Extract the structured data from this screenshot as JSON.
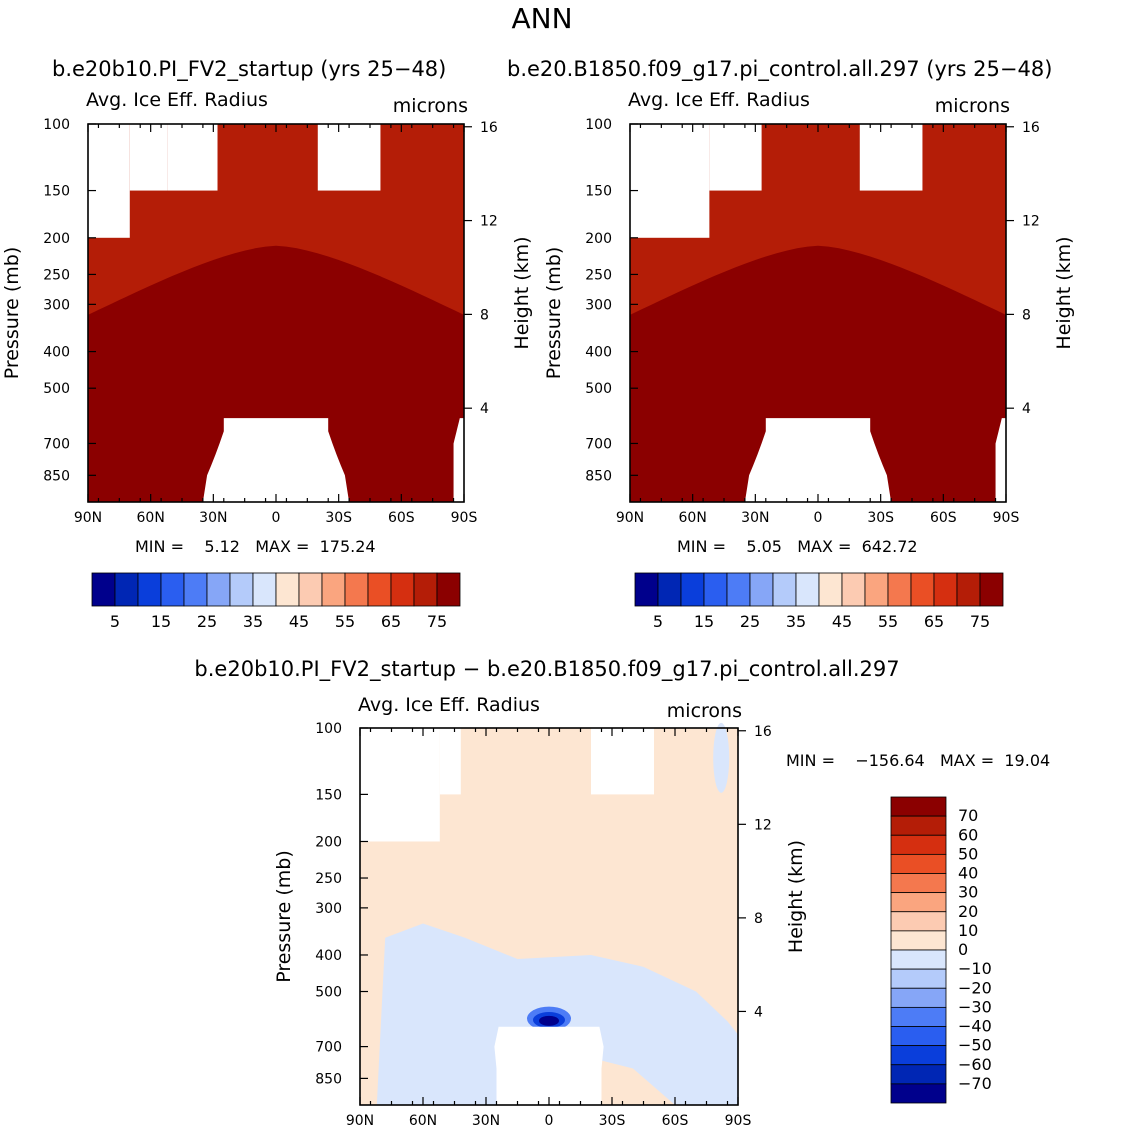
{
  "figure_title": "ANN",
  "case_left": "b.e20b10.PI_FV2_startup (yrs 25−48)",
  "case_right": "b.e20.B1850.f09_g17.pi_control.all.297 (yrs 25−48)",
  "diff_title": "b.e20b10.PI_FV2_startup − b.e20.B1850.f09_g17.pi_control.all.297",
  "colors": {
    "abs_levels": [
      "#00008c",
      "#0026b4",
      "#0a3edb",
      "#2a5ef0",
      "#4d7cf6",
      "#86a6f7",
      "#b4cbfa",
      "#d9e6fc",
      "#fde6d2",
      "#fccbb2",
      "#faa57f",
      "#f4784e",
      "#ea4f25",
      "#d52f10",
      "#b41d07",
      "#8b0000"
    ],
    "diff_levels": [
      "#00008c",
      "#0026b4",
      "#0a3edb",
      "#2a5ef0",
      "#4d7cf6",
      "#86a6f7",
      "#b4cbfa",
      "#d9e6fc",
      "#fde6d2",
      "#fccbb2",
      "#faa57f",
      "#f4784e",
      "#ea4f25",
      "#d52f10",
      "#b41d07",
      "#8b0000"
    ],
    "masked": "#ffffff"
  },
  "chart_data": [
    {
      "type": "heatmap",
      "id": "left",
      "title": "Avg. Ice Eff. Radius",
      "units": "microns",
      "ylabel": "Pressure (mb)",
      "y2label": "Height (km)",
      "x_ticks": [
        "90N",
        "60N",
        "30N",
        "0",
        "30S",
        "60S",
        "90S"
      ],
      "y_ticks": [
        100,
        150,
        200,
        250,
        300,
        400,
        500,
        700,
        850
      ],
      "y2_ticks": [
        16,
        12,
        8,
        4
      ],
      "ylim": [
        1000,
        100
      ],
      "xlim": [
        90,
        -90
      ],
      "min_label": "MIN =",
      "min_value": "5.12",
      "max_label": "MAX =",
      "max_value": "175.24",
      "colorbar_labels": [
        "5",
        "15",
        "25",
        "35",
        "45",
        "55",
        "65",
        "75"
      ]
    },
    {
      "type": "heatmap",
      "id": "right",
      "title": "Avg. Ice Eff. Radius",
      "units": "microns",
      "ylabel": "Pressure (mb)",
      "y2label": "Height (km)",
      "x_ticks": [
        "90N",
        "60N",
        "30N",
        "0",
        "30S",
        "60S",
        "90S"
      ],
      "y_ticks": [
        100,
        150,
        200,
        250,
        300,
        400,
        500,
        700,
        850
      ],
      "y2_ticks": [
        16,
        12,
        8,
        4
      ],
      "ylim": [
        1000,
        100
      ],
      "xlim": [
        90,
        -90
      ],
      "min_label": "MIN =",
      "min_value": "5.05",
      "max_label": "MAX =",
      "max_value": "642.72",
      "colorbar_labels": [
        "5",
        "15",
        "25",
        "35",
        "45",
        "55",
        "65",
        "75"
      ]
    },
    {
      "type": "heatmap",
      "id": "diff",
      "title": "Avg. Ice Eff. Radius",
      "units": "microns",
      "ylabel": "Pressure (mb)",
      "y2label": "Height (km)",
      "x_ticks": [
        "90N",
        "60N",
        "30N",
        "0",
        "30S",
        "60S",
        "90S"
      ],
      "y_ticks": [
        100,
        150,
        200,
        250,
        300,
        400,
        500,
        700,
        850
      ],
      "y2_ticks": [
        16,
        12,
        8,
        4
      ],
      "ylim": [
        1000,
        100
      ],
      "xlim": [
        90,
        -90
      ],
      "min_label": "MIN =",
      "min_value": "−156.64",
      "max_label": "MAX =",
      "max_value": "19.04",
      "colorbar_labels": [
        "70",
        "60",
        "50",
        "40",
        "30",
        "20",
        "10",
        "0",
        "−10",
        "−20",
        "−30",
        "−40",
        "−50",
        "−60",
        "−70"
      ]
    }
  ]
}
